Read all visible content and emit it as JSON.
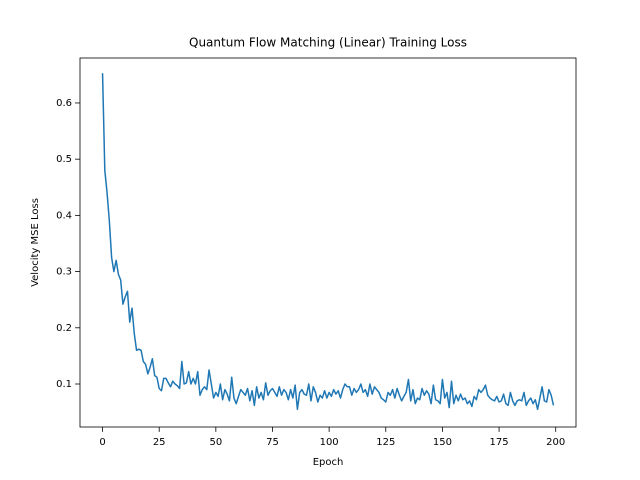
{
  "chart_data": {
    "type": "line",
    "title": "Quantum Flow Matching (Linear) Training Loss",
    "x_label": "Epoch",
    "y_label": "Velocity MSE Loss",
    "x": [
      0,
      1,
      2,
      3,
      4,
      5,
      6,
      7,
      8,
      9,
      10,
      11,
      12,
      13,
      14,
      15,
      16,
      17,
      18,
      19,
      20,
      21,
      22,
      23,
      24,
      25,
      26,
      27,
      28,
      29,
      30,
      31,
      32,
      33,
      34,
      35,
      36,
      37,
      38,
      39,
      40,
      41,
      42,
      43,
      44,
      45,
      46,
      47,
      48,
      49,
      50,
      51,
      52,
      53,
      54,
      55,
      56,
      57,
      58,
      59,
      60,
      61,
      62,
      63,
      64,
      65,
      66,
      67,
      68,
      69,
      70,
      71,
      72,
      73,
      74,
      75,
      76,
      77,
      78,
      79,
      80,
      81,
      82,
      83,
      84,
      85,
      86,
      87,
      88,
      89,
      90,
      91,
      92,
      93,
      94,
      95,
      96,
      97,
      98,
      99,
      100,
      101,
      102,
      103,
      104,
      105,
      106,
      107,
      108,
      109,
      110,
      111,
      112,
      113,
      114,
      115,
      116,
      117,
      118,
      119,
      120,
      121,
      122,
      123,
      124,
      125,
      126,
      127,
      128,
      129,
      130,
      131,
      132,
      133,
      134,
      135,
      136,
      137,
      138,
      139,
      140,
      141,
      142,
      143,
      144,
      145,
      146,
      147,
      148,
      149,
      150,
      151,
      152,
      153,
      154,
      155,
      156,
      157,
      158,
      159,
      160,
      161,
      162,
      163,
      164,
      165,
      166,
      167,
      168,
      169,
      170,
      171,
      172,
      173,
      174,
      175,
      176,
      177,
      178,
      179,
      180,
      181,
      182,
      183,
      184,
      185,
      186,
      187,
      188,
      189,
      190,
      191,
      192,
      193,
      194,
      195,
      196,
      197,
      198,
      199
    ],
    "series": [
      {
        "color": "#1f77b4",
        "values": [
          0.653,
          0.48,
          0.44,
          0.39,
          0.325,
          0.3,
          0.32,
          0.295,
          0.285,
          0.242,
          0.255,
          0.265,
          0.21,
          0.235,
          0.19,
          0.16,
          0.162,
          0.16,
          0.14,
          0.135,
          0.118,
          0.13,
          0.145,
          0.115,
          0.112,
          0.092,
          0.088,
          0.11,
          0.11,
          0.102,
          0.095,
          0.105,
          0.1,
          0.097,
          0.092,
          0.14,
          0.1,
          0.102,
          0.122,
          0.1,
          0.11,
          0.1,
          0.122,
          0.08,
          0.09,
          0.095,
          0.09,
          0.125,
          0.1,
          0.075,
          0.085,
          0.078,
          0.1,
          0.072,
          0.09,
          0.082,
          0.07,
          0.112,
          0.075,
          0.065,
          0.078,
          0.09,
          0.085,
          0.08,
          0.092,
          0.07,
          0.088,
          0.062,
          0.095,
          0.075,
          0.085,
          0.072,
          0.102,
          0.08,
          0.088,
          0.092,
          0.085,
          0.078,
          0.095,
          0.08,
          0.09,
          0.085,
          0.072,
          0.09,
          0.075,
          0.098,
          0.055,
          0.085,
          0.09,
          0.082,
          0.08,
          0.1,
          0.07,
          0.095,
          0.085,
          0.068,
          0.08,
          0.075,
          0.088,
          0.075,
          0.085,
          0.078,
          0.09,
          0.082,
          0.088,
          0.075,
          0.09,
          0.1,
          0.095,
          0.095,
          0.08,
          0.092,
          0.085,
          0.09,
          0.1,
          0.085,
          0.09,
          0.078,
          0.1,
          0.082,
          0.095,
          0.09,
          0.085,
          0.075,
          0.072,
          0.068,
          0.085,
          0.08,
          0.09,
          0.075,
          0.092,
          0.08,
          0.07,
          0.078,
          0.085,
          0.108,
          0.07,
          0.09,
          0.065,
          0.075,
          0.072,
          0.092,
          0.08,
          0.088,
          0.082,
          0.065,
          0.098,
          0.072,
          0.07,
          0.065,
          0.108,
          0.075,
          0.085,
          0.058,
          0.105,
          0.065,
          0.08,
          0.07,
          0.082,
          0.072,
          0.075,
          0.065,
          0.07,
          0.06,
          0.078,
          0.072,
          0.09,
          0.085,
          0.09,
          0.098,
          0.08,
          0.075,
          0.072,
          0.07,
          0.078,
          0.068,
          0.07,
          0.082,
          0.065,
          0.062,
          0.085,
          0.07,
          0.062,
          0.07,
          0.072,
          0.07,
          0.085,
          0.062,
          0.07,
          0.075,
          0.065,
          0.072,
          0.055,
          0.075,
          0.095,
          0.07,
          0.068,
          0.09,
          0.08,
          0.062
        ]
      }
    ],
    "xlim": [
      -9.95,
      208.95
    ],
    "ylim": [
      0.0235,
      0.68
    ],
    "xticks": [
      0,
      25,
      50,
      75,
      100,
      125,
      150,
      175,
      200
    ],
    "yticks": [
      0.1,
      0.2,
      0.3,
      0.4,
      0.5,
      0.6
    ],
    "grid": false
  }
}
